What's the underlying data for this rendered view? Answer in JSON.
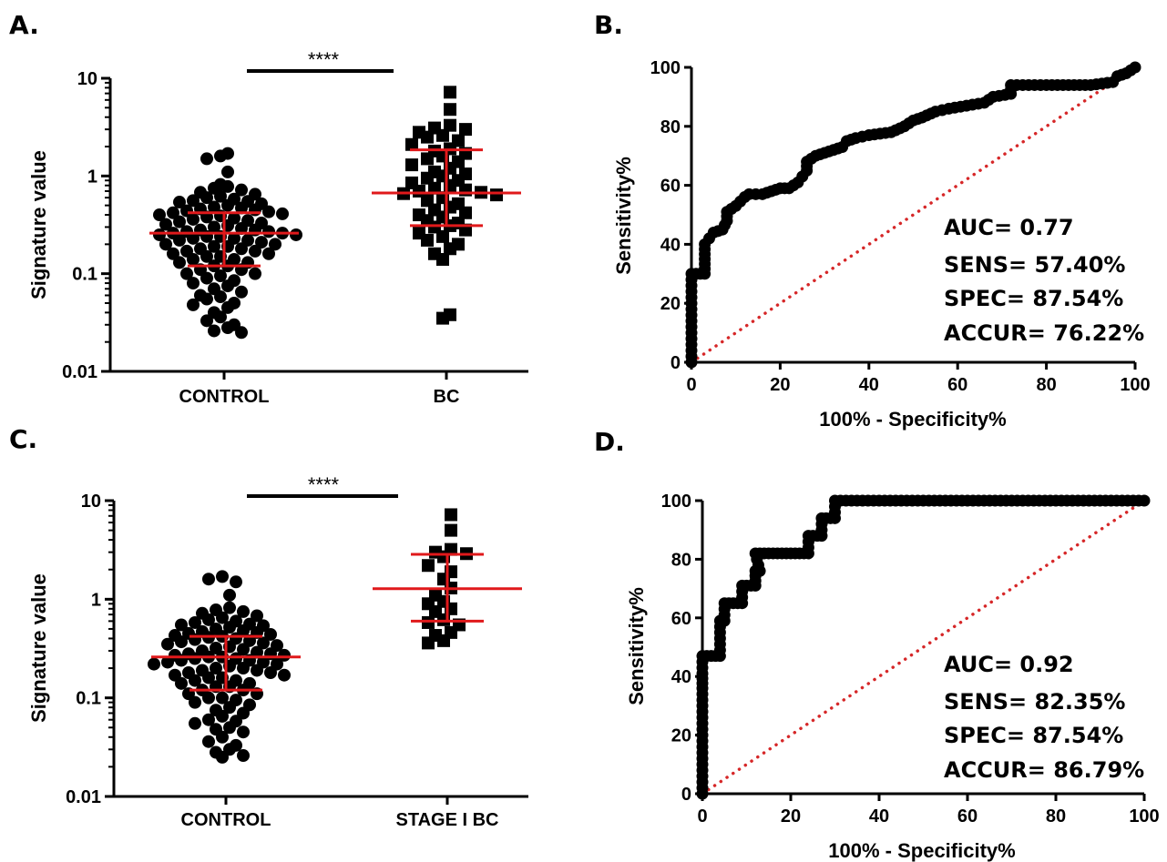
{
  "colors": {
    "accent": "#e0191b",
    "ink": "#000000",
    "reference": "#d62728"
  },
  "chart_data": [
    {
      "panel": "A.",
      "type": "scatter",
      "categories": [
        "CONTROL",
        "BC"
      ],
      "ylabel": "Signature value",
      "yscale": "log",
      "ylim": [
        0.01,
        10
      ],
      "yticks": [
        "0.01",
        "0.1",
        "1",
        "10"
      ],
      "significance": "****",
      "groups": [
        {
          "name": "CONTROL",
          "marker": "circle",
          "median": 0.26,
          "q1": 0.12,
          "q3": 0.42,
          "values": [
            1.7,
            1.6,
            1.5,
            1.1,
            0.82,
            0.78,
            0.75,
            0.72,
            0.68,
            0.65,
            0.62,
            0.6,
            0.58,
            0.56,
            0.55,
            0.54,
            0.52,
            0.5,
            0.48,
            0.47,
            0.46,
            0.45,
            0.44,
            0.43,
            0.42,
            0.41,
            0.4,
            0.39,
            0.38,
            0.37,
            0.36,
            0.35,
            0.34,
            0.33,
            0.32,
            0.31,
            0.3,
            0.29,
            0.28,
            0.28,
            0.27,
            0.27,
            0.26,
            0.26,
            0.25,
            0.25,
            0.24,
            0.24,
            0.23,
            0.23,
            0.22,
            0.22,
            0.21,
            0.2,
            0.2,
            0.19,
            0.19,
            0.18,
            0.18,
            0.17,
            0.17,
            0.16,
            0.16,
            0.15,
            0.15,
            0.14,
            0.14,
            0.13,
            0.13,
            0.12,
            0.12,
            0.11,
            0.11,
            0.1,
            0.1,
            0.095,
            0.09,
            0.085,
            0.08,
            0.075,
            0.07,
            0.065,
            0.06,
            0.058,
            0.055,
            0.05,
            0.048,
            0.045,
            0.04,
            0.036,
            0.033,
            0.03,
            0.028,
            0.026,
            0.025
          ]
        },
        {
          "name": "BC",
          "marker": "square",
          "median": 0.67,
          "q1": 0.31,
          "q3": 1.85,
          "values": [
            7.2,
            4.8,
            3.3,
            3.1,
            3.0,
            2.8,
            2.6,
            2.5,
            2.3,
            2.1,
            1.9,
            1.8,
            1.7,
            1.6,
            1.5,
            1.4,
            1.3,
            1.2,
            1.1,
            1.05,
            1.0,
            0.95,
            0.9,
            0.85,
            0.8,
            0.75,
            0.72,
            0.7,
            0.68,
            0.66,
            0.64,
            0.6,
            0.56,
            0.52,
            0.48,
            0.45,
            0.42,
            0.4,
            0.38,
            0.35,
            0.33,
            0.31,
            0.3,
            0.28,
            0.26,
            0.24,
            0.22,
            0.2,
            0.18,
            0.16,
            0.14,
            0.038,
            0.035
          ]
        }
      ]
    },
    {
      "panel": "B.",
      "type": "line",
      "xlabel": "100% - Specificity%",
      "ylabel": "Sensitivity%",
      "xlim": [
        0,
        100
      ],
      "ylim": [
        0,
        100
      ],
      "xticks": [
        "0",
        "20",
        "40",
        "60",
        "80",
        "100"
      ],
      "yticks": [
        "0",
        "20",
        "40",
        "60",
        "80",
        "100"
      ],
      "stats": [
        "AUC= 0.77",
        "SENS= 57.40%",
        "SPEC= 87.54%",
        "ACCUR= 76.22%"
      ],
      "roc": [
        [
          0,
          0
        ],
        [
          0,
          10
        ],
        [
          0,
          20
        ],
        [
          0,
          30
        ],
        [
          1,
          30
        ],
        [
          3,
          30
        ],
        [
          3,
          35
        ],
        [
          3,
          40
        ],
        [
          4,
          42
        ],
        [
          5,
          44
        ],
        [
          7,
          45
        ],
        [
          8,
          48
        ],
        [
          8,
          51
        ],
        [
          10,
          53
        ],
        [
          12,
          56
        ],
        [
          13,
          57
        ],
        [
          16,
          57
        ],
        [
          18,
          58
        ],
        [
          20,
          59
        ],
        [
          22,
          59
        ],
        [
          24,
          61
        ],
        [
          25,
          63
        ],
        [
          26,
          65
        ],
        [
          26,
          68
        ],
        [
          28,
          70
        ],
        [
          30,
          71
        ],
        [
          32,
          72
        ],
        [
          34,
          73
        ],
        [
          35,
          75
        ],
        [
          37,
          76
        ],
        [
          40,
          77
        ],
        [
          45,
          78
        ],
        [
          48,
          80
        ],
        [
          50,
          82
        ],
        [
          52,
          83
        ],
        [
          55,
          85
        ],
        [
          58,
          86
        ],
        [
          62,
          87
        ],
        [
          66,
          88
        ],
        [
          68,
          90
        ],
        [
          72,
          91
        ],
        [
          72,
          94
        ],
        [
          80,
          94
        ],
        [
          90,
          94
        ],
        [
          95,
          95
        ],
        [
          96,
          97
        ],
        [
          98,
          98
        ],
        [
          100,
          100
        ]
      ]
    },
    {
      "panel": "C.",
      "type": "scatter",
      "categories": [
        "CONTROL",
        "STAGE I BC"
      ],
      "ylabel": "Signature value",
      "yscale": "log",
      "ylim": [
        0.01,
        10
      ],
      "yticks": [
        "0.01",
        "0.1",
        "1",
        "10"
      ],
      "significance": "****",
      "groups": [
        {
          "name": "CONTROL",
          "marker": "circle",
          "median": 0.26,
          "q1": 0.12,
          "q3": 0.42,
          "values": [
            1.7,
            1.6,
            1.5,
            1.1,
            0.82,
            0.78,
            0.75,
            0.72,
            0.68,
            0.65,
            0.62,
            0.6,
            0.58,
            0.56,
            0.55,
            0.54,
            0.52,
            0.5,
            0.48,
            0.47,
            0.46,
            0.45,
            0.44,
            0.43,
            0.42,
            0.41,
            0.4,
            0.39,
            0.38,
            0.37,
            0.36,
            0.35,
            0.34,
            0.33,
            0.32,
            0.31,
            0.3,
            0.29,
            0.28,
            0.28,
            0.27,
            0.27,
            0.26,
            0.26,
            0.25,
            0.25,
            0.24,
            0.24,
            0.23,
            0.23,
            0.22,
            0.22,
            0.21,
            0.2,
            0.2,
            0.19,
            0.19,
            0.18,
            0.18,
            0.17,
            0.17,
            0.16,
            0.16,
            0.15,
            0.15,
            0.14,
            0.14,
            0.13,
            0.13,
            0.12,
            0.12,
            0.11,
            0.11,
            0.1,
            0.1,
            0.095,
            0.09,
            0.085,
            0.08,
            0.075,
            0.07,
            0.065,
            0.06,
            0.058,
            0.055,
            0.05,
            0.048,
            0.045,
            0.04,
            0.036,
            0.033,
            0.03,
            0.028,
            0.026,
            0.025
          ]
        },
        {
          "name": "STAGE I BC",
          "marker": "square",
          "median": 1.28,
          "q1": 0.6,
          "q3": 2.85,
          "values": [
            7.2,
            5.0,
            3.2,
            3.0,
            2.9,
            2.7,
            2.2,
            1.9,
            1.6,
            1.3,
            1.1,
            0.95,
            0.9,
            0.8,
            0.75,
            0.62,
            0.58,
            0.55,
            0.46,
            0.43,
            0.38,
            0.36
          ]
        }
      ]
    },
    {
      "panel": "D.",
      "type": "line",
      "xlabel": "100% - Specificity%",
      "ylabel": "Sensitivity%",
      "xlim": [
        0,
        100
      ],
      "ylim": [
        0,
        100
      ],
      "xticks": [
        "0",
        "20",
        "40",
        "60",
        "80",
        "100"
      ],
      "yticks": [
        "0",
        "20",
        "40",
        "60",
        "80",
        "100"
      ],
      "stats": [
        "AUC= 0.92",
        "SENS= 82.35%",
        "SPEC= 87.54%",
        "ACCUR= 86.79%"
      ],
      "roc": [
        [
          0,
          0
        ],
        [
          0,
          6
        ],
        [
          0,
          12
        ],
        [
          0,
          18
        ],
        [
          0,
          24
        ],
        [
          0,
          30
        ],
        [
          0,
          36
        ],
        [
          0,
          41
        ],
        [
          0,
          47
        ],
        [
          1,
          47
        ],
        [
          2,
          47
        ],
        [
          3,
          47
        ],
        [
          4,
          47
        ],
        [
          4,
          53
        ],
        [
          4,
          59
        ],
        [
          5,
          59
        ],
        [
          5,
          65
        ],
        [
          6,
          65
        ],
        [
          8,
          65
        ],
        [
          9,
          65
        ],
        [
          9,
          71
        ],
        [
          11,
          71
        ],
        [
          12,
          71
        ],
        [
          12,
          76
        ],
        [
          13,
          76
        ],
        [
          12,
          82
        ],
        [
          14,
          82
        ],
        [
          16,
          82
        ],
        [
          18,
          82
        ],
        [
          20,
          82
        ],
        [
          22,
          82
        ],
        [
          24,
          82
        ],
        [
          24,
          88
        ],
        [
          26,
          88
        ],
        [
          27,
          88
        ],
        [
          27,
          94
        ],
        [
          28,
          94
        ],
        [
          30,
          94
        ],
        [
          30,
          100
        ],
        [
          40,
          100
        ],
        [
          50,
          100
        ],
        [
          60,
          100
        ],
        [
          70,
          100
        ],
        [
          80,
          100
        ],
        [
          90,
          100
        ],
        [
          100,
          100
        ]
      ]
    }
  ]
}
